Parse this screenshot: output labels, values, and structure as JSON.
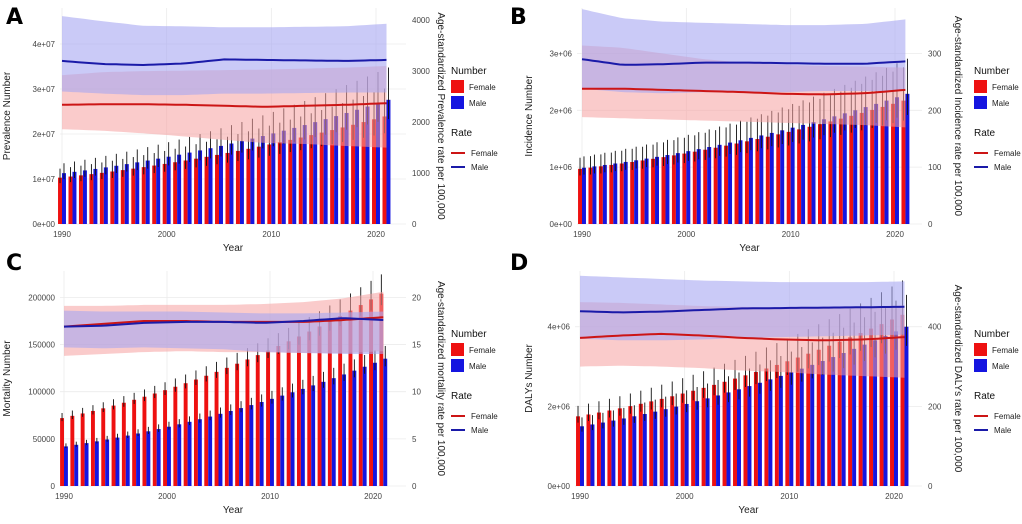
{
  "colors": {
    "female": "#ee1111",
    "male": "#1515e0",
    "female_band": "#f5a0a0",
    "male_band": "#a7a7f2",
    "female_line": "#cc1515",
    "male_line": "#1a1aa8",
    "errorbar": "#111111",
    "grid": "#ebebeb"
  },
  "shared": {
    "xlabel": "Year",
    "x_ticks": [
      "1990",
      "2000",
      "2010",
      "2020"
    ],
    "legend_number_title": "Number",
    "legend_rate_title": "Rate",
    "legend_female": "Female",
    "legend_male": "Male"
  },
  "chart_data": [
    {
      "letter": "A",
      "type": "bar",
      "years": [
        1990,
        2021
      ],
      "ylabel": "Prevalence Number",
      "y2label": "Age-standardized Prevalence rate per 100,000",
      "ylim": [
        0,
        48000000
      ],
      "y2lim": [
        0,
        4239
      ],
      "y_ticks": [
        "0e+00",
        "1e+07",
        "2e+07",
        "3e+07",
        "4e+07"
      ],
      "y_tick_values": [
        0,
        10000000,
        20000000,
        30000000,
        40000000
      ],
      "y2_ticks": [
        "0",
        "1000",
        "2000",
        "3000",
        "4000"
      ],
      "y2_tick_values": [
        0,
        1000,
        2000,
        3000,
        4000
      ],
      "female_number": [
        10300000,
        10000000,
        23900000
      ],
      "male_number": [
        11300000,
        11500000,
        27600000
      ],
      "number_err": 0.26,
      "female_rate": [
        2340,
        2350,
        2350,
        2340,
        2320,
        2300,
        2320,
        2340,
        2370
      ],
      "female_rate_low": [
        1860,
        1830,
        1780,
        1720,
        1650,
        1590,
        1570,
        1530,
        1500
      ],
      "female_rate_high": [
        2920,
        2980,
        3000,
        3010,
        3020,
        3030,
        3050,
        3070,
        3100
      ],
      "male_rate": [
        3200,
        3140,
        3120,
        3150,
        3230,
        3220,
        3210,
        3200,
        3220
      ],
      "male_rate_low": [
        2600,
        2560,
        2530,
        2530,
        2560,
        2560,
        2570,
        2580,
        2580
      ],
      "male_rate_high": [
        4080,
        3980,
        3890,
        3880,
        3860,
        3860,
        3870,
        3880,
        3930
      ]
    },
    {
      "letter": "B",
      "type": "bar",
      "years": [
        1990,
        2021
      ],
      "ylabel": "Incidence Number",
      "y2label": "Age-standardized Incidence rate per 100,000",
      "ylim": [
        0,
        3800000
      ],
      "y2lim": [
        0,
        380
      ],
      "y_ticks": [
        "0e+00",
        "1e+06",
        "2e+06",
        "3e+06"
      ],
      "y_tick_values": [
        0,
        1000000,
        2000000,
        3000000
      ],
      "y2_ticks": [
        "0",
        "100",
        "200",
        "300"
      ],
      "y2_tick_values": [
        0,
        100,
        200,
        300
      ],
      "female_number": [
        970000,
        1060000,
        2170000
      ],
      "male_number": [
        990000,
        1060000,
        2290000
      ],
      "number_err": 0.27,
      "female_rate": [
        238,
        238,
        236,
        234,
        232,
        229,
        228,
        230,
        236
      ],
      "female_rate_low": [
        188,
        186,
        184,
        182,
        180,
        178,
        176,
        174,
        170
      ],
      "female_rate_high": [
        314,
        310,
        300,
        290,
        284,
        280,
        278,
        277,
        275
      ],
      "male_rate": [
        290,
        280,
        281,
        284,
        284,
        283,
        282,
        282,
        286
      ],
      "male_rate_low": [
        238,
        232,
        230,
        232,
        232,
        232,
        234,
        234,
        234
      ],
      "male_rate_high": [
        378,
        362,
        356,
        354,
        352,
        350,
        350,
        352,
        360
      ]
    },
    {
      "letter": "C",
      "type": "bar",
      "years": [
        1990,
        2021
      ],
      "ylabel": "Mortality Number",
      "y2label": "Age-standardized mortality rate per 100,000",
      "ylim": [
        0,
        228000
      ],
      "y2lim": [
        0,
        22.8
      ],
      "y_ticks": [
        "0",
        "50000",
        "100000",
        "150000",
        "200000"
      ],
      "y_tick_values": [
        0,
        50000,
        100000,
        150000,
        200000
      ],
      "y2_ticks": [
        "0",
        "5",
        "10",
        "15",
        "20"
      ],
      "y2_tick_values": [
        0,
        5,
        10,
        15,
        20
      ],
      "female_number": [
        72000,
        75000,
        204000
      ],
      "male_number": [
        42000,
        44000,
        135000
      ],
      "number_err": 0.1,
      "female_rate": [
        16.9,
        17.2,
        17.5,
        17.5,
        17.4,
        17.4,
        17.4,
        17.6,
        17.9
      ],
      "female_rate_low": [
        13.8,
        14.0,
        14.2,
        14.3,
        14.2,
        14.2,
        14.1,
        14.1,
        14.3
      ],
      "female_rate_high": [
        19.1,
        19.1,
        19.2,
        19.2,
        19.2,
        19.3,
        19.5,
        19.9,
        20.6
      ],
      "male_rate": [
        16.9,
        17.0,
        17.3,
        17.4,
        17.4,
        17.3,
        17.5,
        17.8,
        17.6
      ],
      "male_rate_low": [
        14.7,
        14.6,
        14.7,
        14.6,
        14.5,
        14.2,
        14.1,
        14.0,
        14.0
      ],
      "male_rate_high": [
        18.6,
        18.5,
        18.5,
        18.5,
        18.4,
        18.3,
        18.3,
        18.4,
        18.5
      ]
    },
    {
      "letter": "D",
      "type": "bar",
      "years": [
        1990,
        2021
      ],
      "ylabel": "DALYs Number",
      "y2label": "Age-standardized DALYs rate per 100,000",
      "ylim": [
        0,
        5400000
      ],
      "y2lim": [
        0,
        540
      ],
      "y_ticks": [
        "0e+00",
        "2e+06",
        "4e+06"
      ],
      "y_tick_values": [
        0,
        2000000,
        4000000
      ],
      "y2_ticks": [
        "0",
        "200",
        "400"
      ],
      "y2_tick_values": [
        0,
        200,
        400
      ],
      "female_number": [
        1750000,
        1800000,
        4300000
      ],
      "male_number": [
        1500000,
        1550000,
        4000000
      ],
      "number_err": 0.2,
      "female_rate": [
        372,
        378,
        382,
        378,
        372,
        368,
        366,
        368,
        374
      ],
      "female_rate_low": [
        300,
        302,
        300,
        296,
        290,
        286,
        280,
        276,
        272
      ],
      "female_rate_high": [
        462,
        460,
        456,
        452,
        450,
        448,
        448,
        450,
        454
      ],
      "male_rate": [
        439,
        436,
        438,
        442,
        446,
        447,
        448,
        449,
        450
      ],
      "male_rate_low": [
        370,
        366,
        366,
        368,
        372,
        374,
        376,
        378,
        380
      ],
      "male_rate_high": [
        528,
        524,
        520,
        516,
        514,
        512,
        512,
        512,
        514
      ]
    }
  ]
}
